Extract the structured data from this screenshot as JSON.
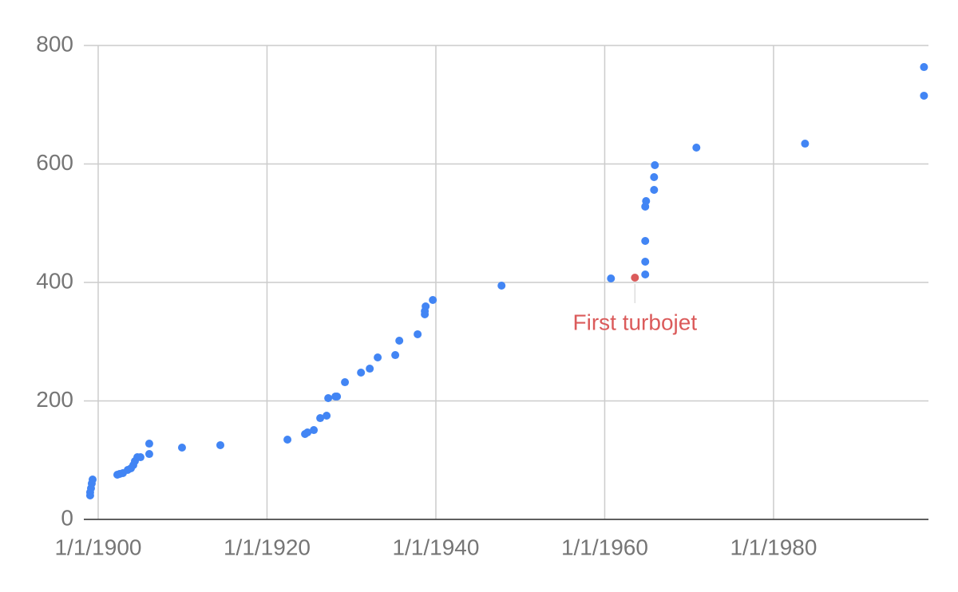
{
  "chart_data": {
    "type": "scatter",
    "color": "#4285f4",
    "xlim": [
      1898.3,
      1998.35
    ],
    "ylim": [
      0,
      800
    ],
    "xticks": [
      {
        "value": 1900,
        "label": "1/1/1900"
      },
      {
        "value": 1920,
        "label": "1/1/1920"
      },
      {
        "value": 1940,
        "label": "1/1/1940"
      },
      {
        "value": 1960,
        "label": "1/1/1960"
      },
      {
        "value": 1980,
        "label": "1/1/1980"
      }
    ],
    "yticks": [
      0,
      200,
      400,
      600,
      800
    ],
    "grid": true,
    "x": [
      1899.05,
      1899.05,
      1899.15,
      1899.24,
      1899.34,
      1902.27,
      1902.55,
      1902.93,
      1903.5,
      1903.88,
      1904.16,
      1904.35,
      1904.64,
      1905.01,
      1906.05,
      1906.05,
      1909.93,
      1914.47,
      1922.42,
      1924.5,
      1924.79,
      1925.54,
      1926.3,
      1927.06,
      1927.25,
      1928.1,
      1928.29,
      1929.23,
      1931.13,
      1932.17,
      1933.11,
      1935.19,
      1935.67,
      1937.84,
      1938.69,
      1938.69,
      1938.79,
      1939.64,
      1947.78,
      1960.74,
      1964.8,
      1964.8,
      1964.8,
      1964.8,
      1964.9,
      1965.85,
      1965.85,
      1965.94,
      1970.86,
      1983.73,
      1997.82,
      1997.82
    ],
    "values": [
      40.4,
      45.8,
      52.5,
      60.6,
      67.3,
      75.4,
      76.8,
      78.1,
      83.5,
      86.2,
      91.6,
      98.3,
      105,
      105,
      110.4,
      127.9,
      121.2,
      125.3,
      134.7,
      144.1,
      146.8,
      150.8,
      171,
      175.1,
      204.7,
      207.4,
      207.4,
      231.6,
      247.8,
      254.5,
      273.4,
      277.4,
      301.7,
      312.5,
      346.1,
      351.5,
      359.6,
      370.4,
      394.6,
      406.7,
      413.5,
      435,
      470,
      528,
      537.4,
      556.2,
      577.8,
      598,
      627.6,
      634.3,
      715.2,
      763.6
    ],
    "annotation": {
      "text": "First turbojet",
      "x": 1963.58,
      "y": 408.1,
      "color": "#db5b5b"
    }
  }
}
